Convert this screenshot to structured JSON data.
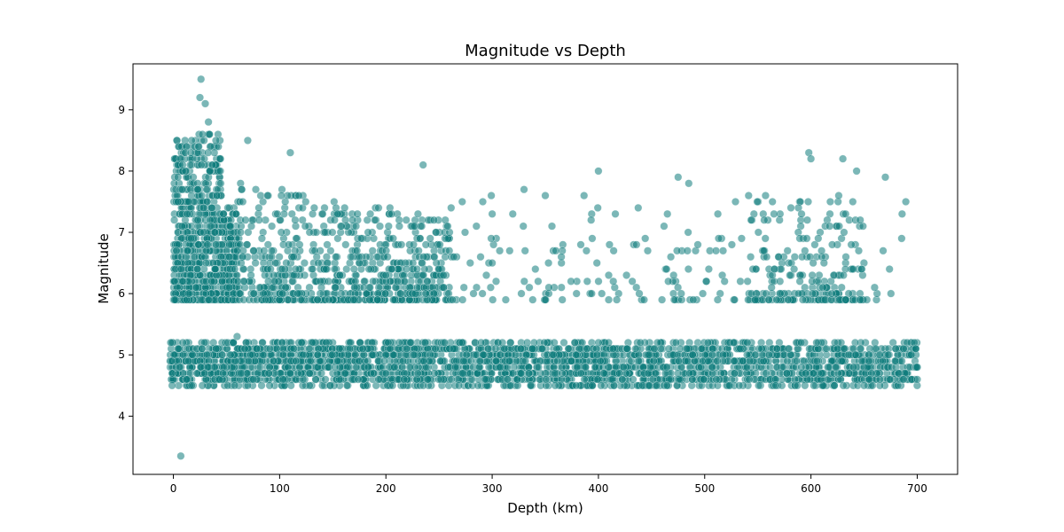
{
  "chart_data": {
    "type": "scatter",
    "title": "Magnitude vs Depth",
    "xlabel": "Depth (km)",
    "ylabel": "Magnitude",
    "xlim": [
      -38,
      738
    ],
    "ylim": [
      3.05,
      9.75
    ],
    "x_ticks": [
      0,
      100,
      200,
      300,
      400,
      500,
      600,
      700
    ],
    "y_ticks": [
      4,
      5,
      6,
      7,
      8,
      9
    ],
    "grid": false,
    "legend": "none",
    "point_color": "#0e7c7b",
    "point_opacity": 0.55,
    "notable_points": [
      {
        "x": 26,
        "y": 9.5
      },
      {
        "x": 25,
        "y": 9.2
      },
      {
        "x": 30,
        "y": 9.1
      },
      {
        "x": 33,
        "y": 8.8
      },
      {
        "x": 40,
        "y": 8.5
      },
      {
        "x": 70,
        "y": 8.5
      },
      {
        "x": 110,
        "y": 8.3
      },
      {
        "x": 235,
        "y": 8.1
      },
      {
        "x": 330,
        "y": 7.7
      },
      {
        "x": 400,
        "y": 8.0
      },
      {
        "x": 475,
        "y": 7.9
      },
      {
        "x": 485,
        "y": 7.8
      },
      {
        "x": 598,
        "y": 8.3
      },
      {
        "x": 600,
        "y": 8.2
      },
      {
        "x": 630,
        "y": 8.2
      },
      {
        "x": 643,
        "y": 8.0
      },
      {
        "x": 670,
        "y": 7.9
      },
      {
        "x": 60,
        "y": 5.3
      },
      {
        "x": 7,
        "y": 3.35
      },
      {
        "x": 700,
        "y": 4.8
      },
      {
        "x": 700,
        "y": 4.6
      }
    ],
    "dense_bands": [
      {
        "x_range": [
          -3,
          700
        ],
        "y_range": [
          4.5,
          5.2
        ],
        "density": "very high, decreasing slightly with depth"
      },
      {
        "x_range": [
          0,
          60
        ],
        "y_range": [
          5.9,
          8.6
        ],
        "density": "very high"
      },
      {
        "x_range": [
          60,
          260
        ],
        "y_range": [
          5.9,
          7.8
        ],
        "density": "moderate"
      },
      {
        "x_range": [
          260,
          690
        ],
        "y_range": [
          5.9,
          7.6
        ],
        "density": "sparse, denser near 550-650 km"
      }
    ]
  }
}
